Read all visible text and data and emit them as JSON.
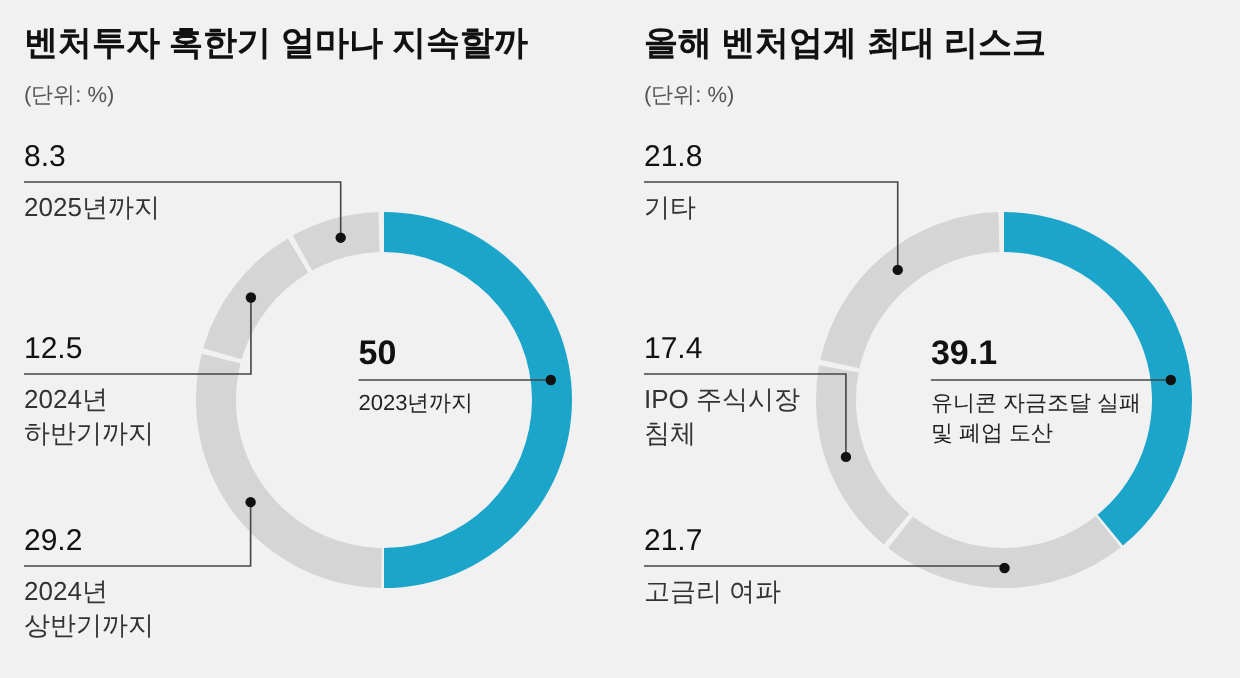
{
  "chart_data": [
    {
      "type": "donut",
      "title": "벤처투자 혹한기 얼마나 지속할까",
      "subtitle": "(단위: %)",
      "categories": [
        "2023년까지",
        "2024년 상반기까지",
        "2024년 하반기까지",
        "2025년까지"
      ],
      "values": [
        50,
        29.2,
        12.5,
        8.3
      ],
      "colors": [
        "#1ba5cb",
        "#d5d5d5",
        "#d5d5d5",
        "#d5d5d5"
      ],
      "data_labels": true
    },
    {
      "type": "donut",
      "title": "올해 벤처업계 최대 리스크",
      "subtitle": "(단위: %)",
      "categories": [
        "유니콘 자금조달 실패 및 폐업 도산",
        "고금리 여파",
        "IPO 주식시장 침체",
        "기타"
      ],
      "values": [
        39.1,
        21.7,
        17.4,
        21.8
      ],
      "colors": [
        "#1ba5cb",
        "#d5d5d5",
        "#d5d5d5",
        "#d5d5d5"
      ],
      "data_labels": true
    }
  ]
}
